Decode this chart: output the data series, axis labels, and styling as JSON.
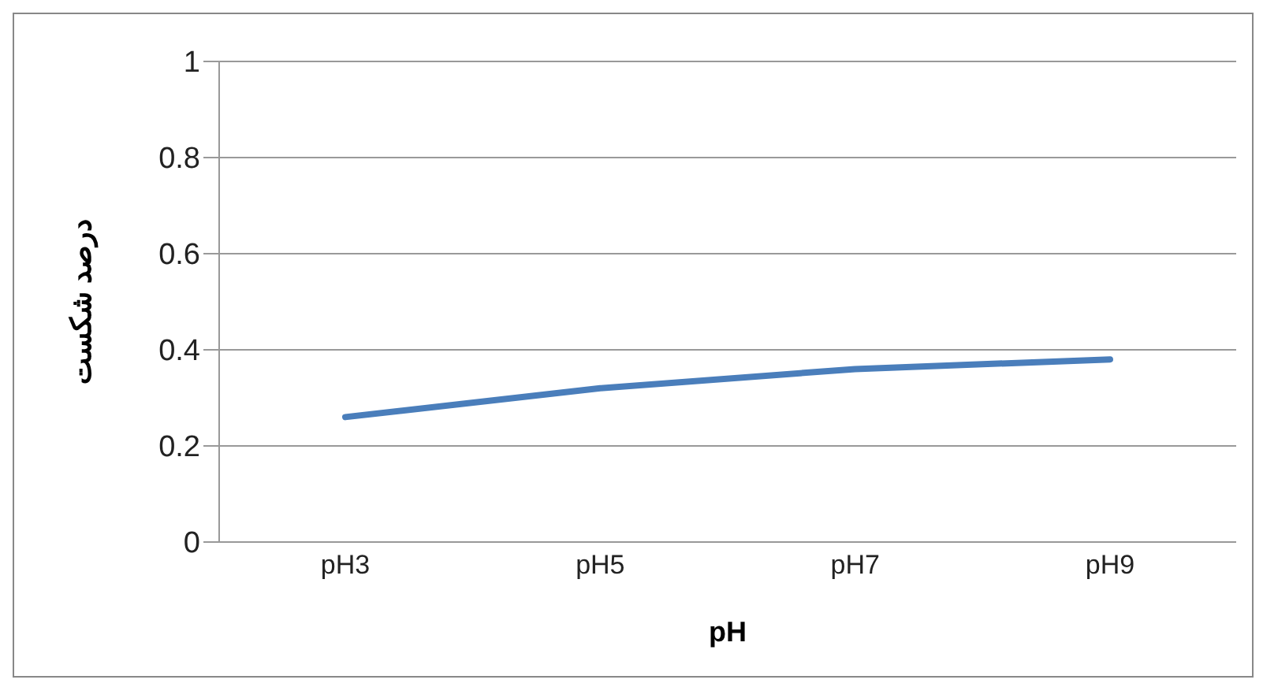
{
  "chart_data": {
    "type": "line",
    "xlabel": "pH",
    "ylabel": "درصد شکست",
    "categories": [
      "pH3",
      "pH5",
      "pH7",
      "pH9"
    ],
    "series": [
      {
        "color": "#4a7ebb",
        "values": [
          0.26,
          0.32,
          0.36,
          0.38
        ]
      }
    ],
    "ylim": [
      0,
      1
    ],
    "yticks": [
      0,
      0.2,
      0.4,
      0.6,
      0.8,
      1
    ],
    "grid": "y",
    "legend": false,
    "marker": "none",
    "line_style": "solid"
  }
}
